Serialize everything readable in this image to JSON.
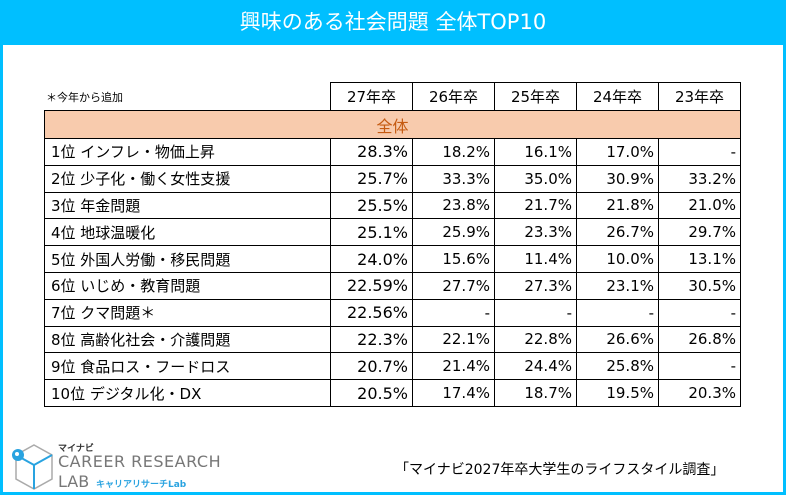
{
  "title": "興味のある社会問題  全体TOP10",
  "note": "＊今年から追加",
  "columns": [
    "27年卒",
    "26年卒",
    "25年卒",
    "24年卒",
    "23年卒"
  ],
  "section": "全体",
  "rows": [
    {
      "label": "1位  インフレ・物価上昇",
      "values": [
        "28.3%",
        "18.2%",
        "16.1%",
        "17.0%",
        "-"
      ]
    },
    {
      "label": "2位  少子化・働く女性支援",
      "values": [
        "25.7%",
        "33.3%",
        "35.0%",
        "30.9%",
        "33.2%"
      ]
    },
    {
      "label": "3位  年金問題",
      "values": [
        "25.5%",
        "23.8%",
        "21.7%",
        "21.8%",
        "21.0%"
      ]
    },
    {
      "label": "4位  地球温暖化",
      "values": [
        "25.1%",
        "25.9%",
        "23.3%",
        "26.7%",
        "29.7%"
      ]
    },
    {
      "label": "5位  外国人労働・移民問題",
      "values": [
        "24.0%",
        "15.6%",
        "11.4%",
        "10.0%",
        "13.1%"
      ]
    },
    {
      "label": "6位  いじめ・教育問題",
      "values": [
        "22.59%",
        "27.7%",
        "27.3%",
        "23.1%",
        "30.5%"
      ]
    },
    {
      "label": "7位  クマ問題＊",
      "values": [
        "22.56%",
        "-",
        "-",
        "-",
        "-"
      ]
    },
    {
      "label": "8位  高齢化社会・介護問題",
      "values": [
        "22.3%",
        "22.1%",
        "22.8%",
        "26.6%",
        "26.8%"
      ]
    },
    {
      "label": "9位  食品ロス・フードロス",
      "values": [
        "20.7%",
        "21.4%",
        "24.4%",
        "25.8%",
        "-"
      ]
    },
    {
      "label": "10位  デジタル化・DX",
      "values": [
        "20.5%",
        "17.4%",
        "18.7%",
        "19.5%",
        "20.3%"
      ]
    }
  ],
  "logo": {
    "small": "マイナビ",
    "main": "CAREER RESEARCH",
    "lab": "LAB",
    "sub": "キャリアリサーチLab"
  },
  "source": "「マイナビ2027年卒大学生のライフスタイル調査」",
  "colors": {
    "accent": "#00bfff",
    "section_bg": "#f8cbad",
    "section_text": "#c55a11"
  }
}
